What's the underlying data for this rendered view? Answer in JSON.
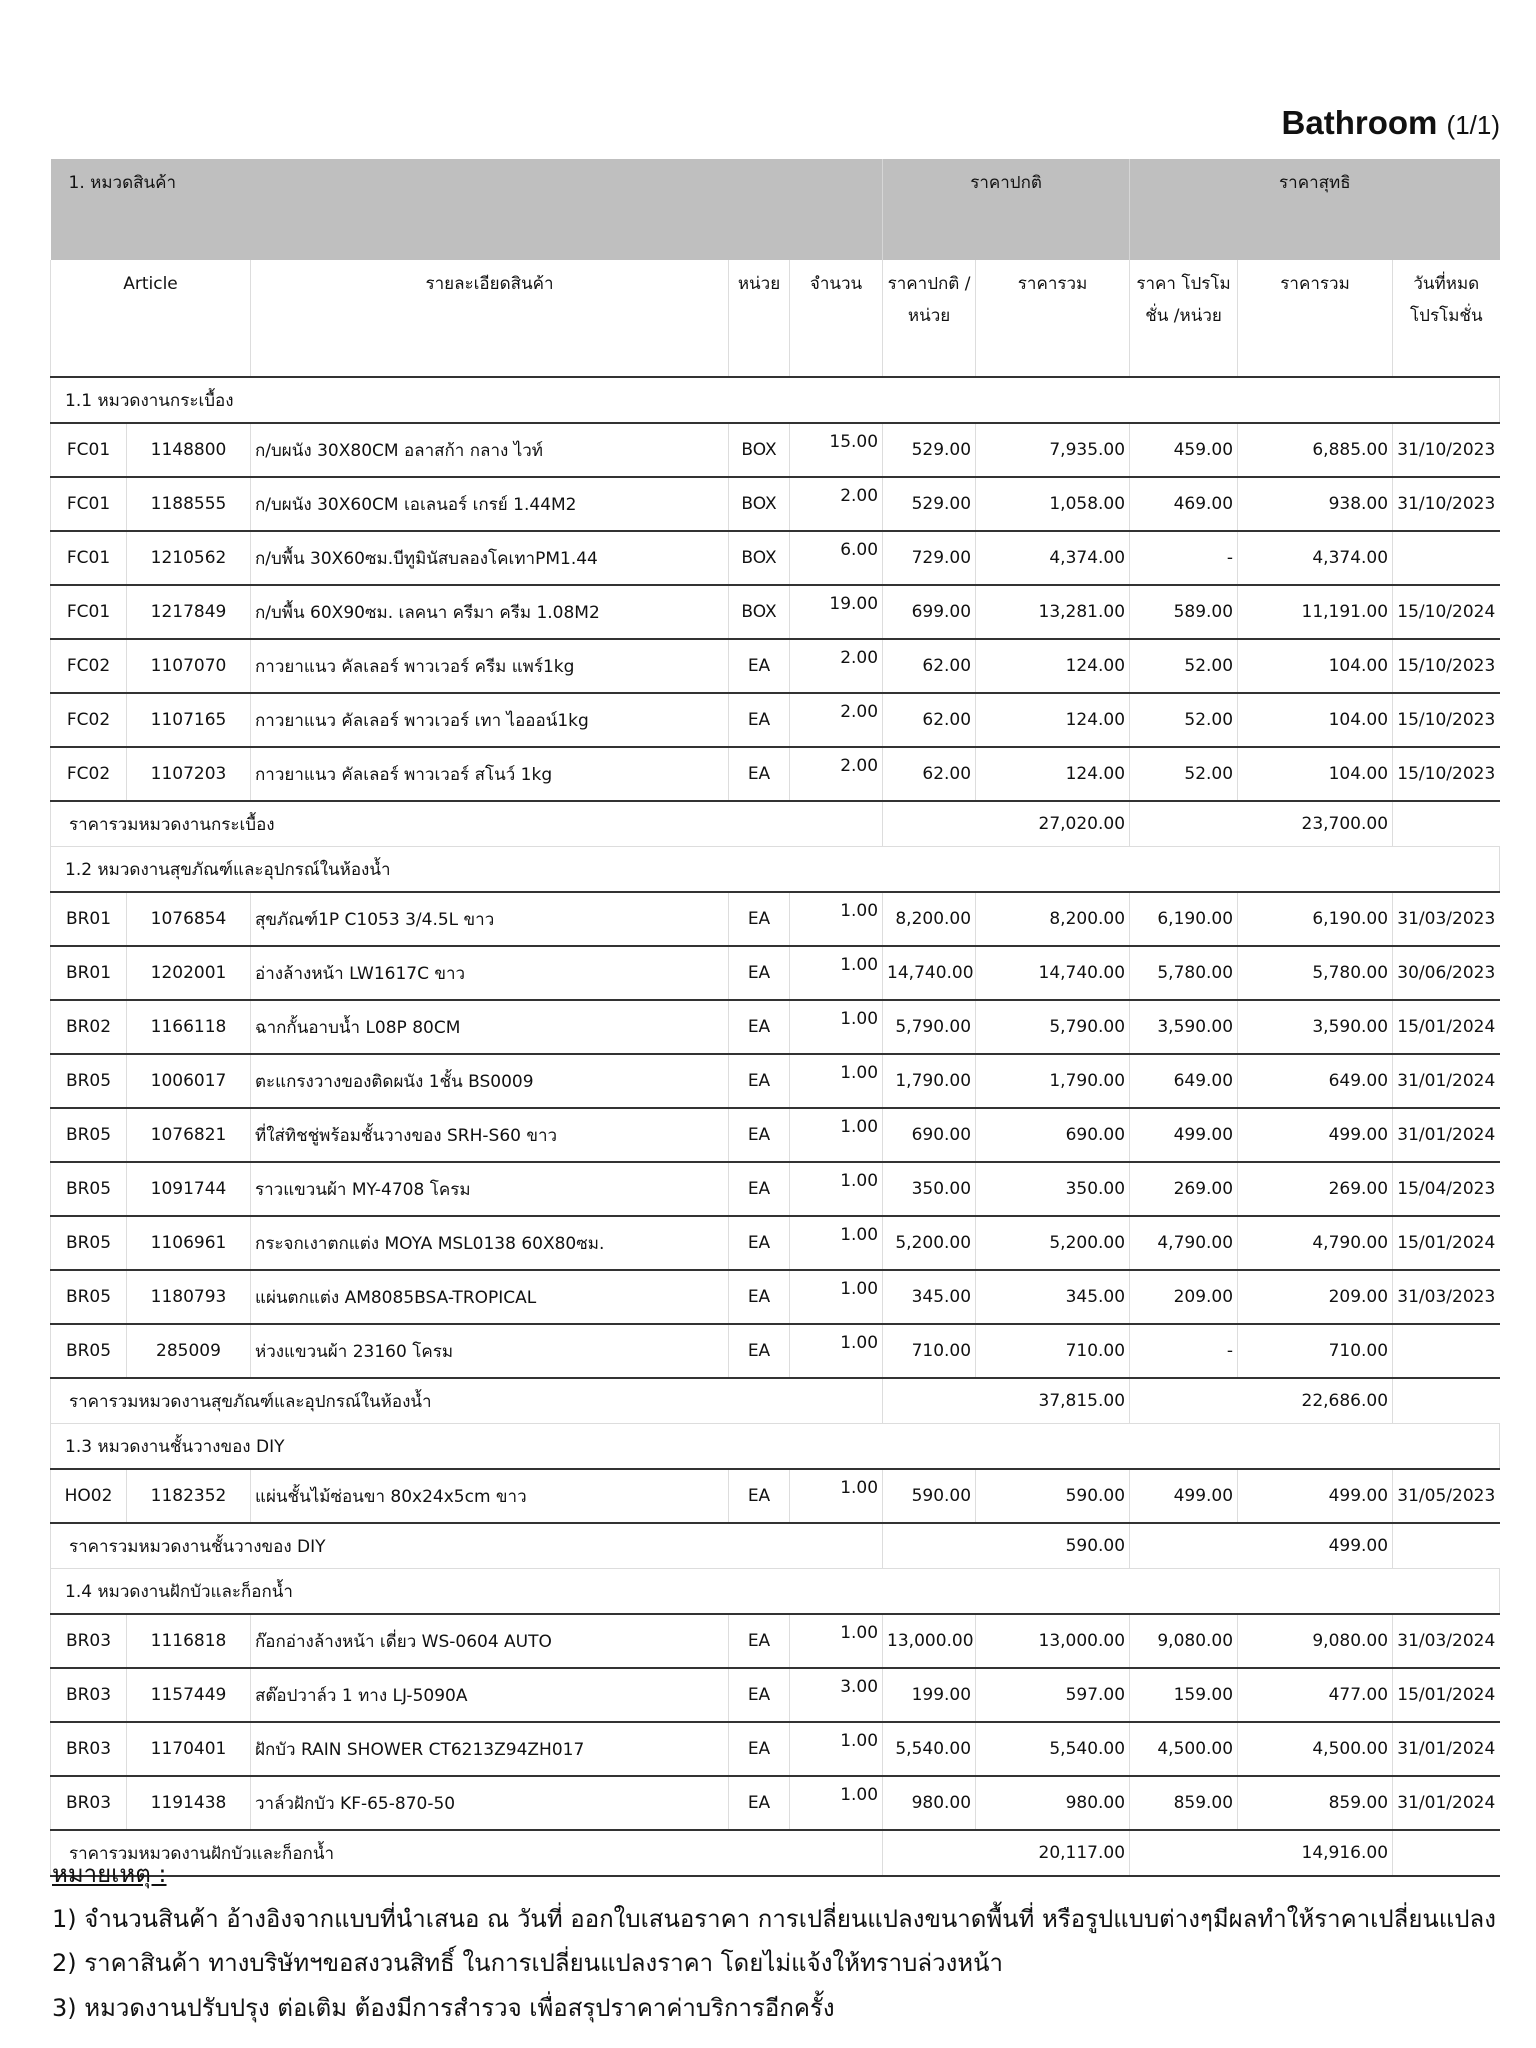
{
  "title": {
    "text": "Bathroom",
    "page": "(1/1)"
  },
  "header": {
    "category": "1. หมวดสินค้า",
    "group_normal": "ราคาปกติ",
    "group_net": "ราคาสุทธิ",
    "columns": [
      "Article",
      "รายละเอียดสินค้า",
      "หน่วย",
      "จำนวน",
      "ราคาปกติ /หน่วย",
      "ราคารวม",
      "ราคา โปรโมชั่น /หน่วย",
      "ราคารวม",
      "วันที่หมด โปรโมชั่น"
    ]
  },
  "sections": [
    {
      "title": "1.1 หมวดงานกระเบื้อง",
      "items": [
        [
          "FC01",
          "1148800",
          "ก/บผนัง 30X80CM อลาสก้า กลาง ไวท์",
          "BOX",
          "15.00",
          "529.00",
          "7,935.00",
          "459.00",
          "6,885.00",
          "31/10/2023"
        ],
        [
          "FC01",
          "1188555",
          "ก/บผนัง 30X60CM เอเลนอร์ เกรย์ 1.44M2",
          "BOX",
          "2.00",
          "529.00",
          "1,058.00",
          "469.00",
          "938.00",
          "31/10/2023"
        ],
        [
          "FC01",
          "1210562",
          "ก/บพื้น 30X60ซม.บีทูมินัสบลองโคเทาPM1.44",
          "BOX",
          "6.00",
          "729.00",
          "4,374.00",
          "-",
          "4,374.00",
          ""
        ],
        [
          "FC01",
          "1217849",
          "ก/บพื้น 60X90ซม. เลคนา ครีมา ครีม 1.08M2",
          "BOX",
          "19.00",
          "699.00",
          "13,281.00",
          "589.00",
          "11,191.00",
          "15/10/2024"
        ],
        [
          "FC02",
          "1107070",
          "กาวยาแนว คัลเลอร์ พาวเวอร์ ครีม แพร์1kg",
          "EA",
          "2.00",
          "62.00",
          "124.00",
          "52.00",
          "104.00",
          "15/10/2023"
        ],
        [
          "FC02",
          "1107165",
          "กาวยาแนว คัลเลอร์ พาวเวอร์ เทา ไอออน์1kg",
          "EA",
          "2.00",
          "62.00",
          "124.00",
          "52.00",
          "104.00",
          "15/10/2023"
        ],
        [
          "FC02",
          "1107203",
          "กาวยาแนว คัลเลอร์ พาวเวอร์ สโนว์ 1kg",
          "EA",
          "2.00",
          "62.00",
          "124.00",
          "52.00",
          "104.00",
          "15/10/2023"
        ]
      ],
      "subtotal_label": "ราคารวมหมวดงานกระเบื้อง",
      "subtotal_normal": "27,020.00",
      "subtotal_net": "23,700.00"
    },
    {
      "title": "1.2 หมวดงานสุขภัณฑ์และอุปกรณ์ในห้องน้ำ",
      "items": [
        [
          "BR01",
          "1076854",
          "สุขภัณฑ์1P C1053 3/4.5L ขาว",
          "EA",
          "1.00",
          "8,200.00",
          "8,200.00",
          "6,190.00",
          "6,190.00",
          "31/03/2023"
        ],
        [
          "BR01",
          "1202001",
          "อ่างล้างหน้า LW1617C ขาว",
          "EA",
          "1.00",
          "14,740.00",
          "14,740.00",
          "5,780.00",
          "5,780.00",
          "30/06/2023"
        ],
        [
          "BR02",
          "1166118",
          "ฉากกั้นอาบน้ำ L08P 80CM",
          "EA",
          "1.00",
          "5,790.00",
          "5,790.00",
          "3,590.00",
          "3,590.00",
          "15/01/2024"
        ],
        [
          "BR05",
          "1006017",
          "ตะแกรงวางของติดผนัง 1ชั้น BS0009",
          "EA",
          "1.00",
          "1,790.00",
          "1,790.00",
          "649.00",
          "649.00",
          "31/01/2024"
        ],
        [
          "BR05",
          "1076821",
          "ที่ใส่ทิชชู่พร้อมชั้นวางของ SRH-S60 ขาว",
          "EA",
          "1.00",
          "690.00",
          "690.00",
          "499.00",
          "499.00",
          "31/01/2024"
        ],
        [
          "BR05",
          "1091744",
          "ราวแขวนผ้า MY-4708 โครม",
          "EA",
          "1.00",
          "350.00",
          "350.00",
          "269.00",
          "269.00",
          "15/04/2023"
        ],
        [
          "BR05",
          "1106961",
          "กระจกเงาตกแต่ง MOYA MSL0138  60X80ซม.",
          "EA",
          "1.00",
          "5,200.00",
          "5,200.00",
          "4,790.00",
          "4,790.00",
          "15/01/2024"
        ],
        [
          "BR05",
          "1180793",
          "แผ่นตกแต่ง AM8085BSA-TROPICAL",
          "EA",
          "1.00",
          "345.00",
          "345.00",
          "209.00",
          "209.00",
          "31/03/2023"
        ],
        [
          "BR05",
          "285009",
          "ห่วงแขวนผ้า 23160 โครม",
          "EA",
          "1.00",
          "710.00",
          "710.00",
          "-",
          "710.00",
          ""
        ]
      ],
      "subtotal_label": "ราคารวมหมวดงานสุขภัณฑ์และอุปกรณ์ในห้องน้ำ",
      "subtotal_normal": "37,815.00",
      "subtotal_net": "22,686.00"
    },
    {
      "title": "1.3 หมวดงานชั้นวางของ DIY",
      "items": [
        [
          "HO02",
          "1182352",
          "แผ่นชั้นไม้ซ่อนขา 80x24x5cm ขาว",
          "EA",
          "1.00",
          "590.00",
          "590.00",
          "499.00",
          "499.00",
          "31/05/2023"
        ]
      ],
      "subtotal_label": "ราคารวมหมวดงานชั้นวางของ DIY",
      "subtotal_normal": "590.00",
      "subtotal_net": "499.00"
    },
    {
      "title": "1.4 หมวดงานฝักบัวและก็อกน้ำ",
      "items": [
        [
          "BR03",
          "1116818",
          "ก๊อกอ่างล้างหน้า เดี่ยว WS-0604 AUTO",
          "EA",
          "1.00",
          "13,000.00",
          "13,000.00",
          "9,080.00",
          "9,080.00",
          "31/03/2024"
        ],
        [
          "BR03",
          "1157449",
          "สต๊อปวาล์ว 1 ทาง LJ-5090A",
          "EA",
          "3.00",
          "199.00",
          "597.00",
          "159.00",
          "477.00",
          "15/01/2024"
        ],
        [
          "BR03",
          "1170401",
          "ฝักบัว RAIN SHOWER CT6213Z94ZH017",
          "EA",
          "1.00",
          "5,540.00",
          "5,540.00",
          "4,500.00",
          "4,500.00",
          "31/01/2024"
        ],
        [
          "BR03",
          "1191438",
          "วาล์วฝักบัว KF-65-870-50",
          "EA",
          "1.00",
          "980.00",
          "980.00",
          "859.00",
          "859.00",
          "31/01/2024"
        ]
      ],
      "subtotal_label": "ราคารวมหมวดงานฝักบัวและก็อกน้ำ",
      "subtotal_normal": "20,117.00",
      "subtotal_net": "14,916.00"
    }
  ],
  "notes": {
    "heading": "หมายเหตุ :",
    "lines": [
      "1) จำนวนสินค้า อ้างอิงจากแบบที่นำเสนอ ณ วันที่ ออกใบเสนอราคา การเปลี่ยนแปลงขนาดพื้นที่ หรือรูปแบบต่างๆมีผลทำให้ราคาเปลี่ยนแปลง",
      "2) ราคาสินค้า ทางบริษัทฯขอสงวนสิทธิ์ ในการเปลี่ยนแปลงราคา โดยไม่แจ้งให้ทราบล่วงหน้า",
      "3) หมวดงานปรับปรุง ต่อเติม ต้องมีการสำรวจ เพื่อสรุปราคาค่าบริการอีกครั้ง"
    ]
  },
  "colors": {
    "header_bg": "#bfbfbf",
    "row_border": "#333333",
    "grid": "#dddddd"
  }
}
